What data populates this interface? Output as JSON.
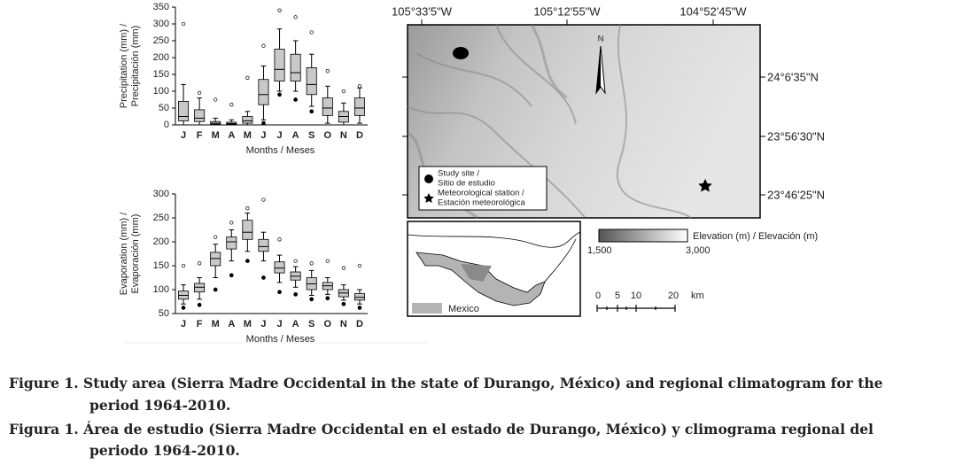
{
  "chart_data": [
    {
      "type": "box",
      "y_label": [
        "Precipitation (mm) /",
        "Precipitación (mm)"
      ],
      "x_label": "Months / Meses",
      "categories": [
        "J",
        "F",
        "M",
        "A",
        "M",
        "J",
        "J",
        "A",
        "S",
        "O",
        "N",
        "D"
      ],
      "ylim": [
        0,
        350
      ],
      "yticks": [
        0,
        50,
        100,
        150,
        200,
        250,
        300,
        350
      ],
      "color": "#c8c8c8",
      "boxes": [
        {
          "low": 0,
          "q1": 12,
          "median": 25,
          "q3": 70,
          "high": 120,
          "outliers": [
            300
          ]
        },
        {
          "low": 0,
          "q1": 10,
          "median": 20,
          "q3": 45,
          "high": 80,
          "outliers": [
            95
          ]
        },
        {
          "low": 0,
          "q1": 2,
          "median": 5,
          "q3": 10,
          "high": 20,
          "outliers": [
            75
          ]
        },
        {
          "low": 0,
          "q1": 2,
          "median": 4,
          "q3": 8,
          "high": 15,
          "outliers": [
            60
          ]
        },
        {
          "low": 0,
          "q1": 5,
          "median": 12,
          "q3": 25,
          "high": 40,
          "outliers": [
            140
          ]
        },
        {
          "low": 15,
          "q1": 60,
          "median": 90,
          "q3": 135,
          "high": 175,
          "outliers": [
            235,
            5
          ]
        },
        {
          "low": 100,
          "q1": 130,
          "median": 165,
          "q3": 225,
          "high": 285,
          "outliers": [
            340,
            90
          ]
        },
        {
          "low": 100,
          "q1": 130,
          "median": 155,
          "q3": 210,
          "high": 250,
          "outliers": [
            320,
            75
          ]
        },
        {
          "low": 55,
          "q1": 90,
          "median": 120,
          "q3": 170,
          "high": 210,
          "outliers": [
            275,
            40
          ]
        },
        {
          "low": 5,
          "q1": 28,
          "median": 50,
          "q3": 80,
          "high": 115,
          "outliers": [
            160
          ]
        },
        {
          "low": 0,
          "q1": 8,
          "median": 25,
          "q3": 40,
          "high": 65,
          "outliers": [
            100
          ]
        },
        {
          "low": 5,
          "q1": 28,
          "median": 50,
          "q3": 80,
          "high": 110,
          "outliers": [
            115
          ]
        }
      ]
    },
    {
      "type": "box",
      "y_label": [
        "Evaporation (mm) /",
        "Evaporación (mm)"
      ],
      "x_label": "Months / Meses",
      "categories": [
        "J",
        "F",
        "M",
        "A",
        "M",
        "J",
        "J",
        "A",
        "S",
        "O",
        "N",
        "D"
      ],
      "ylim": [
        50,
        300
      ],
      "yticks": [
        50,
        100,
        150,
        200,
        250,
        300
      ],
      "color": "#c8c8c8",
      "boxes": [
        {
          "low": 70,
          "q1": 80,
          "median": 88,
          "q3": 97,
          "high": 110,
          "outliers": [
            150,
            62
          ]
        },
        {
          "low": 80,
          "q1": 95,
          "median": 105,
          "q3": 113,
          "high": 125,
          "outliers": [
            155,
            68
          ]
        },
        {
          "low": 125,
          "q1": 150,
          "median": 165,
          "q3": 178,
          "high": 195,
          "outliers": [
            210,
            100
          ]
        },
        {
          "low": 160,
          "q1": 185,
          "median": 200,
          "q3": 210,
          "high": 225,
          "outliers": [
            240,
            130
          ]
        },
        {
          "low": 180,
          "q1": 205,
          "median": 220,
          "q3": 245,
          "high": 260,
          "outliers": [
            270,
            160
          ]
        },
        {
          "low": 160,
          "q1": 180,
          "median": 190,
          "q3": 205,
          "high": 220,
          "outliers": [
            288,
            125
          ]
        },
        {
          "low": 115,
          "q1": 135,
          "median": 145,
          "q3": 158,
          "high": 172,
          "outliers": [
            205,
            95
          ]
        },
        {
          "low": 105,
          "q1": 120,
          "median": 128,
          "q3": 137,
          "high": 148,
          "outliers": [
            160,
            90
          ]
        },
        {
          "low": 88,
          "q1": 100,
          "median": 112,
          "q3": 125,
          "high": 140,
          "outliers": [
            155,
            80
          ]
        },
        {
          "low": 90,
          "q1": 100,
          "median": 108,
          "q3": 115,
          "high": 125,
          "outliers": [
            160,
            82
          ]
        },
        {
          "low": 78,
          "q1": 85,
          "median": 93,
          "q3": 100,
          "high": 110,
          "outliers": [
            145,
            70
          ]
        },
        {
          "low": 70,
          "q1": 78,
          "median": 84,
          "q3": 92,
          "high": 100,
          "outliers": [
            150,
            62
          ]
        }
      ]
    }
  ],
  "map": {
    "longitudes": [
      "105°33'5\"W",
      "105°12'55\"W",
      "104°52'45\"W"
    ],
    "latitudes": [
      "24°6'35\"N",
      "23°56'30\"N",
      "23°46'25\"N"
    ],
    "north": "N",
    "legend": {
      "study_site": [
        "Study site /",
        "Sitio de estudio"
      ],
      "station": [
        "Meteorological station /",
        "Estación meteorológica"
      ]
    },
    "elevation": {
      "title": "Elevation (m) / Elevación (m)",
      "min": "1,500",
      "max": "3,000"
    },
    "scale": [
      "0",
      "5",
      "10",
      "20",
      "km"
    ],
    "inset_label": "Mexico"
  },
  "caption": {
    "english": [
      "Figure 1. Study area (Sierra Madre Occidental in the state of Durango, México) and regional climatogram for the",
      "period 1964-2010."
    ],
    "spanish": [
      "Figura 1. Área de estudio (Sierra Madre Occidental en el estado de Durango, México) y climograma regional del",
      "periodo 1964-2010."
    ]
  }
}
